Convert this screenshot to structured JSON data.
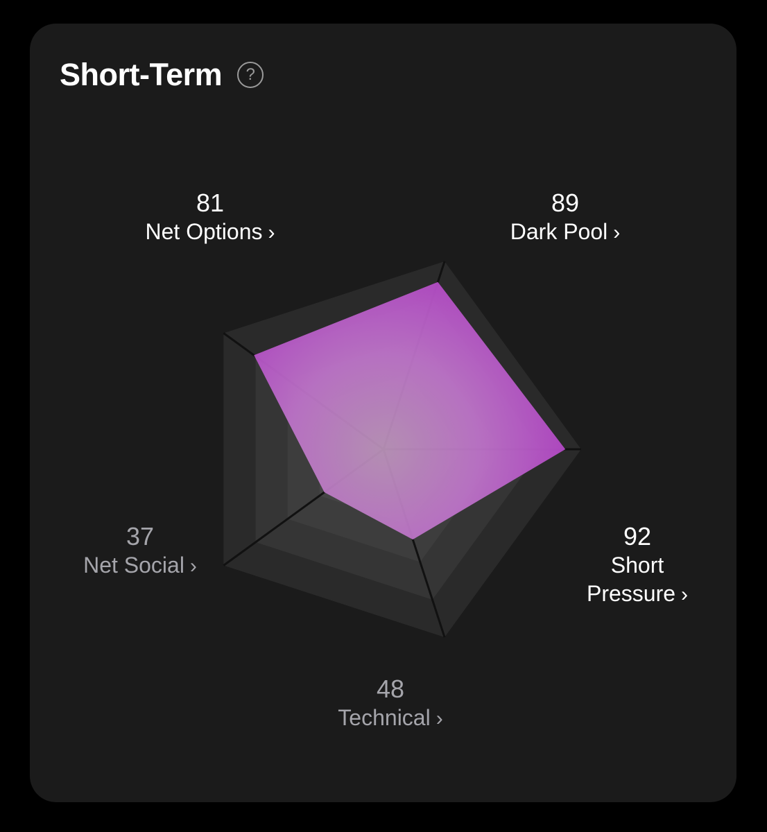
{
  "card": {
    "title": "Short-Term",
    "help_icon": "question-circle-icon"
  },
  "colors": {
    "background": "#000000",
    "card": "#1b1b1b",
    "accent": "#b446c8",
    "label_bright": "#ffffff",
    "label_dim": "#a5a5ab"
  },
  "chart_data": {
    "type": "radar",
    "axes": [
      {
        "name": "Dark Pool",
        "value": 89
      },
      {
        "name": "Short Pressure",
        "value": 92
      },
      {
        "name": "Technical",
        "value": 48
      },
      {
        "name": "Net Social",
        "value": 37
      },
      {
        "name": "Net Options",
        "value": 81
      }
    ],
    "range": [
      0,
      100
    ],
    "rings": 5
  },
  "labels": {
    "net_options": {
      "value": "81",
      "name": "Net Options",
      "chevron": "›"
    },
    "dark_pool": {
      "value": "89",
      "name": "Dark Pool",
      "chevron": "›"
    },
    "short_pressure": {
      "value": "92",
      "name_line1": "Short",
      "name_line2": "Pressure",
      "chevron": "›"
    },
    "technical": {
      "value": "48",
      "name": "Technical",
      "chevron": "›"
    },
    "net_social": {
      "value": "37",
      "name": "Net Social",
      "chevron": "›"
    }
  }
}
